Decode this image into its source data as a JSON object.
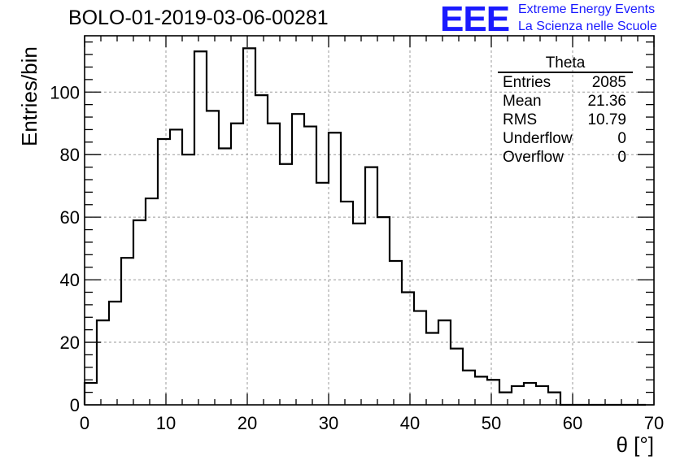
{
  "page_title": "BOLO-01-2019-03-06-00281",
  "logo": {
    "mark": "EEE",
    "line1": "Extreme Energy Events",
    "line2": "La Scienza nelle Scuole",
    "color": "#1a1aff"
  },
  "stats_box": {
    "title": "Theta",
    "rows": [
      {
        "label": "Entries",
        "value": "2085"
      },
      {
        "label": "Mean",
        "value": "21.36"
      },
      {
        "label": "RMS",
        "value": "10.79"
      },
      {
        "label": "Underflow",
        "value": "0"
      },
      {
        "label": "Overflow",
        "value": "0"
      }
    ]
  },
  "chart_data": {
    "type": "bar",
    "title": "BOLO-01-2019-03-06-00281",
    "xlabel": "θ [°]",
    "ylabel": "Entries/bin",
    "xlim": [
      0,
      70
    ],
    "ylim": [
      0,
      118
    ],
    "x_ticks": [
      0,
      10,
      20,
      30,
      40,
      50,
      60,
      70
    ],
    "y_ticks": [
      0,
      20,
      40,
      60,
      80,
      100
    ],
    "grid": true,
    "bin_width": 1.5,
    "bin_edges_start": 0,
    "values": [
      7,
      27,
      33,
      47,
      59,
      66,
      85,
      88,
      80,
      113,
      94,
      82,
      90,
      114,
      99,
      90,
      77,
      93,
      89,
      71,
      87,
      65,
      58,
      76,
      60,
      46,
      36,
      30,
      23,
      27,
      18,
      11,
      9,
      8,
      4,
      6,
      7,
      6,
      4,
      0,
      0,
      0,
      0,
      0,
      0,
      0
    ]
  }
}
